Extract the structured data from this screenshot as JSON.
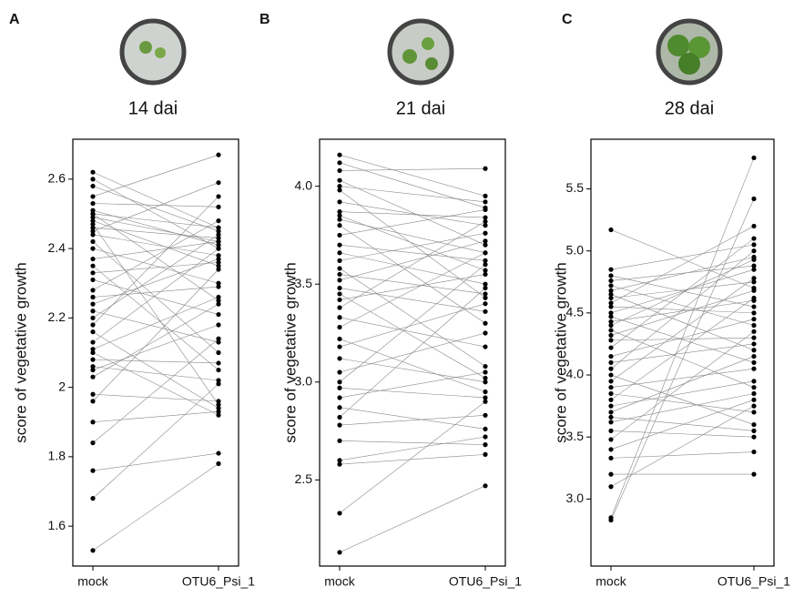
{
  "chart_data": [
    {
      "type": "paired",
      "panel": "A",
      "title": "14 dai",
      "ylabel": "score of vegetative growth",
      "categories": [
        "mock",
        "OTU6_Psi_1"
      ],
      "ylim": [
        1.485,
        2.715
      ],
      "yticks": [
        1.6,
        1.8,
        2.0,
        2.2,
        2.4,
        2.6
      ],
      "values": [
        [
          2.62,
          2.46
        ],
        [
          2.6,
          2.4
        ],
        [
          2.58,
          2.45
        ],
        [
          2.55,
          2.67
        ],
        [
          2.53,
          2.52
        ],
        [
          2.51,
          2.41
        ],
        [
          2.5,
          2.25
        ],
        [
          2.5,
          2.46
        ],
        [
          2.49,
          2.42
        ],
        [
          2.48,
          2.35
        ],
        [
          2.47,
          1.95
        ],
        [
          2.46,
          2.43
        ],
        [
          2.45,
          2.59
        ],
        [
          2.44,
          2.38
        ],
        [
          2.42,
          2.1
        ],
        [
          2.4,
          2.3
        ],
        [
          2.37,
          2.42
        ],
        [
          2.35,
          2.05
        ],
        [
          2.33,
          2.36
        ],
        [
          2.31,
          2.21
        ],
        [
          2.28,
          2.48
        ],
        [
          2.26,
          2.29
        ],
        [
          2.24,
          2.37
        ],
        [
          2.22,
          2.13
        ],
        [
          2.2,
          2.44
        ],
        [
          2.18,
          2.55
        ],
        [
          2.16,
          1.94
        ],
        [
          2.13,
          2.4
        ],
        [
          2.11,
          2.26
        ],
        [
          2.1,
          1.92
        ],
        [
          2.08,
          2.07
        ],
        [
          2.06,
          2.02
        ],
        [
          2.05,
          2.18
        ],
        [
          2.03,
          2.24
        ],
        [
          1.98,
          1.96
        ],
        [
          1.96,
          2.34
        ],
        [
          1.9,
          1.93
        ],
        [
          1.84,
          2.14
        ],
        [
          1.76,
          1.81
        ],
        [
          1.68,
          2.01
        ],
        [
          1.53,
          1.78
        ]
      ]
    },
    {
      "type": "paired",
      "panel": "B",
      "title": "21 dai",
      "ylabel": "score of vegetative growth",
      "categories": [
        "mock",
        "OTU6_Psi_1"
      ],
      "ylim": [
        2.06,
        4.24
      ],
      "yticks": [
        {
          "value": 2.5,
          "label": "2.5"
        },
        {
          "value": 3,
          "label": "3.0"
        },
        {
          "value": 3.5,
          "label": "3.5"
        },
        {
          "value": 4,
          "label": "4.0"
        }
      ],
      "values": [
        [
          4.16,
          3.95
        ],
        [
          4.12,
          3.89
        ],
        [
          4.08,
          4.09
        ],
        [
          4.03,
          3.7
        ],
        [
          4.0,
          3.92
        ],
        [
          3.98,
          3.43
        ],
        [
          3.92,
          3.8
        ],
        [
          3.87,
          3.84
        ],
        [
          3.85,
          3.57
        ],
        [
          3.83,
          3.66
        ],
        [
          3.8,
          3.3
        ],
        [
          3.75,
          3.88
        ],
        [
          3.7,
          3.62
        ],
        [
          3.66,
          3.5
        ],
        [
          3.62,
          3.76
        ],
        [
          3.58,
          3.08
        ],
        [
          3.55,
          3.45
        ],
        [
          3.52,
          3.72
        ],
        [
          3.48,
          3.36
        ],
        [
          3.45,
          3.02
        ],
        [
          3.42,
          3.55
        ],
        [
          3.38,
          3.82
        ],
        [
          3.33,
          3.18
        ],
        [
          3.28,
          3.66
        ],
        [
          3.22,
          2.95
        ],
        [
          3.18,
          3.4
        ],
        [
          3.12,
          3.0
        ],
        [
          3.05,
          3.25
        ],
        [
          3.0,
          3.6
        ],
        [
          2.97,
          2.92
        ],
        [
          2.92,
          3.05
        ],
        [
          2.87,
          2.76
        ],
        [
          2.82,
          3.48
        ],
        [
          2.78,
          2.83
        ],
        [
          2.7,
          2.68
        ],
        [
          2.6,
          2.72
        ],
        [
          2.58,
          2.63
        ],
        [
          2.33,
          2.9
        ],
        [
          2.13,
          2.47
        ]
      ]
    },
    {
      "type": "paired",
      "panel": "C",
      "title": "28 dai",
      "ylabel": "score of vegetative growth",
      "categories": [
        "mock",
        "OTU6_Psi_1"
      ],
      "ylim": [
        2.46,
        5.9
      ],
      "yticks": [
        {
          "value": 3,
          "label": "3.0"
        },
        3.5,
        {
          "value": 4,
          "label": "4.0"
        },
        4.5,
        {
          "value": 5,
          "label": "5.0"
        },
        5.5
      ],
      "values": [
        [
          5.17,
          4.7
        ],
        [
          4.85,
          5.05
        ],
        [
          4.8,
          4.55
        ],
        [
          4.76,
          4.88
        ],
        [
          4.72,
          4.4
        ],
        [
          4.68,
          4.95
        ],
        [
          4.65,
          4.2
        ],
        [
          4.62,
          4.75
        ],
        [
          4.58,
          5.2
        ],
        [
          4.55,
          4.5
        ],
        [
          4.5,
          4.85
        ],
        [
          4.47,
          4.1
        ],
        [
          4.43,
          4.6
        ],
        [
          4.4,
          4.93
        ],
        [
          4.36,
          3.9
        ],
        [
          4.32,
          4.68
        ],
        [
          4.28,
          4.3
        ],
        [
          4.22,
          5.1
        ],
        [
          4.15,
          4.45
        ],
        [
          4.1,
          4.25
        ],
        [
          4.05,
          5.0
        ],
        [
          4.0,
          3.6
        ],
        [
          3.95,
          4.78
        ],
        [
          3.9,
          4.05
        ],
        [
          3.85,
          3.7
        ],
        [
          3.8,
          4.62
        ],
        [
          3.75,
          3.95
        ],
        [
          3.7,
          4.15
        ],
        [
          3.66,
          3.55
        ],
        [
          3.62,
          3.85
        ],
        [
          3.55,
          3.5
        ],
        [
          3.48,
          4.35
        ],
        [
          3.4,
          3.8
        ],
        [
          3.33,
          3.38
        ],
        [
          3.2,
          3.2
        ],
        [
          3.1,
          3.75
        ],
        [
          2.85,
          5.75
        ],
        [
          2.83,
          5.42
        ]
      ]
    }
  ]
}
